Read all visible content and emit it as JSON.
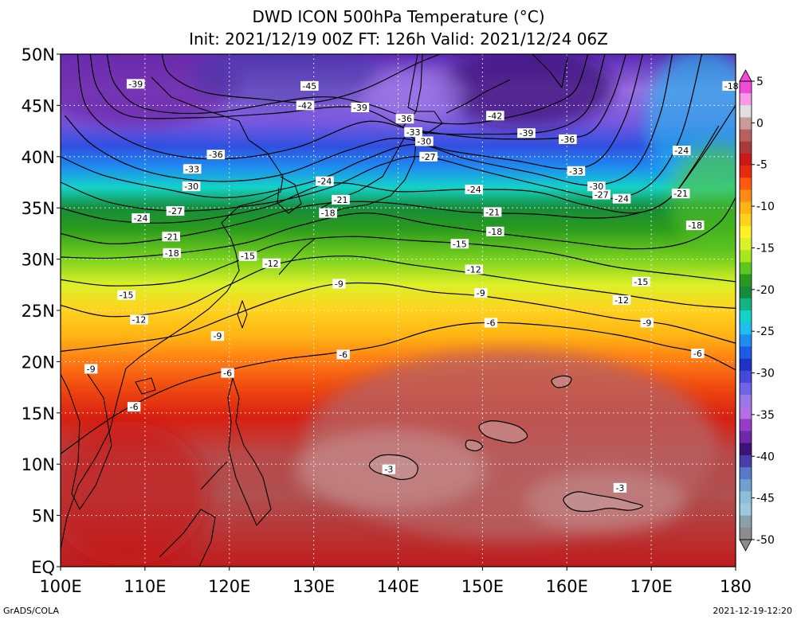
{
  "title": "DWD ICON 500hPa Temperature (°C)",
  "subtitle": "Init: 2021/12/19 00Z  FT: 126h  Valid: 2021/12/24 06Z",
  "credit": "GrADS/COLA",
  "timestamp": "2021-12-19-12:20",
  "map": {
    "lon_range": [
      100,
      180
    ],
    "lat_range": [
      0,
      50
    ],
    "lon_ticks": [
      {
        "lon": 100,
        "label": "100E"
      },
      {
        "lon": 110,
        "label": "110E"
      },
      {
        "lon": 120,
        "label": "120E"
      },
      {
        "lon": 130,
        "label": "130E"
      },
      {
        "lon": 140,
        "label": "140E"
      },
      {
        "lon": 150,
        "label": "150E"
      },
      {
        "lon": 160,
        "label": "160E"
      },
      {
        "lon": 170,
        "label": "170E"
      },
      {
        "lon": 180,
        "label": "180"
      }
    ],
    "lat_ticks": [
      {
        "lat": 0,
        "label": "EQ"
      },
      {
        "lat": 5,
        "label": "5N"
      },
      {
        "lat": 10,
        "label": "10N"
      },
      {
        "lat": 15,
        "label": "15N"
      },
      {
        "lat": 20,
        "label": "20N"
      },
      {
        "lat": 25,
        "label": "25N"
      },
      {
        "lat": 30,
        "label": "30N"
      },
      {
        "lat": 35,
        "label": "35N"
      },
      {
        "lat": 40,
        "label": "40N"
      },
      {
        "lat": 45,
        "label": "45N"
      },
      {
        "lat": 50,
        "label": "50N"
      }
    ]
  },
  "colorbar": {
    "labels": [
      "5",
      "0",
      "-5",
      "-10",
      "-15",
      "-20",
      "-25",
      "-30",
      "-35",
      "-40",
      "-45",
      "-50"
    ],
    "colors": [
      "#f04ad8",
      "#f89ae6",
      "#e0e0e0",
      "#c89a9a",
      "#b86060",
      "#a83a3a",
      "#c81818",
      "#e62a0e",
      "#ff5a10",
      "#ff8c14",
      "#ffb414",
      "#ffd21e",
      "#fff028",
      "#dcf028",
      "#a8e61e",
      "#5ac81e",
      "#2a9a1e",
      "#168c3a",
      "#14b482",
      "#14d2c8",
      "#1ebeee",
      "#1e8cf0",
      "#1e5ae6",
      "#1e32c8",
      "#4648dc",
      "#7064e6",
      "#9a78e6",
      "#b46ee6",
      "#963cc8",
      "#6e28aa",
      "#3c1478",
      "#4a3caa",
      "#5a78c8",
      "#6ea0d2",
      "#8cbed7",
      "#9ccadc",
      "#8aa0a8",
      "#8c8c8c"
    ]
  },
  "contours": [
    {
      "value": -45,
      "points": [
        [
          112,
          50
        ],
        [
          113,
          48
        ],
        [
          117,
          46.3
        ],
        [
          124,
          45.6
        ],
        [
          130,
          45.3
        ],
        [
          136,
          46.6
        ],
        [
          142,
          49
        ],
        [
          145,
          50
        ]
      ],
      "labels": [
        {
          "lon": 129.5,
          "lat": 46.9,
          "text": "-45"
        }
      ]
    },
    {
      "value": -42,
      "points": [
        [
          105.5,
          50
        ],
        [
          106.5,
          47
        ],
        [
          110,
          44.7
        ],
        [
          118,
          44.3
        ],
        [
          130,
          45.8
        ],
        [
          136,
          45.2
        ],
        [
          142,
          43.6
        ],
        [
          148,
          43.2
        ],
        [
          154,
          44
        ],
        [
          158,
          45
        ],
        [
          161,
          46.5
        ],
        [
          162.5,
          50
        ]
      ],
      "labels": [
        {
          "lon": 129,
          "lat": 45.0,
          "text": "-42"
        },
        {
          "lon": 151.5,
          "lat": 44.0,
          "text": "-42"
        }
      ]
    },
    {
      "value": -39,
      "points": [
        [
          103.5,
          50
        ],
        [
          104.5,
          46.5
        ],
        [
          108,
          44
        ],
        [
          116,
          43.8
        ],
        [
          125,
          44.2
        ],
        [
          135,
          44.8
        ],
        [
          142,
          42.5
        ],
        [
          150,
          42.2
        ],
        [
          157,
          42.4
        ],
        [
          161,
          43.5
        ],
        [
          163,
          45.5
        ],
        [
          164.5,
          50
        ]
      ],
      "labels": [
        {
          "lon": 108.9,
          "lat": 47.1,
          "text": "-39"
        },
        {
          "lon": 135.5,
          "lat": 44.8,
          "text": "-39"
        },
        {
          "lon": 155.2,
          "lat": 42.3,
          "text": "-39"
        }
      ]
    },
    {
      "value": -36,
      "points": [
        [
          102,
          50
        ],
        [
          103,
          45
        ],
        [
          107,
          42
        ],
        [
          113,
          40.2
        ],
        [
          120,
          39.8
        ],
        [
          128,
          40.9
        ],
        [
          136,
          43.4
        ],
        [
          142,
          42.6
        ],
        [
          150,
          41.8
        ],
        [
          159,
          41.8
        ],
        [
          163,
          42.5
        ],
        [
          165.5,
          46
        ],
        [
          167,
          50
        ]
      ],
      "labels": [
        {
          "lon": 118.4,
          "lat": 40.2,
          "text": "-36"
        },
        {
          "lon": 140.8,
          "lat": 43.7,
          "text": "-36"
        },
        {
          "lon": 160.1,
          "lat": 41.7,
          "text": "-36"
        }
      ]
    },
    {
      "value": -33,
      "points": [
        [
          100.5,
          44
        ],
        [
          104,
          41
        ],
        [
          110,
          38.6
        ],
        [
          118,
          37.6
        ],
        [
          126,
          38.2
        ],
        [
          134,
          40.6
        ],
        [
          140,
          41.8
        ],
        [
          146,
          40.6
        ],
        [
          154,
          39.6
        ],
        [
          160,
          38.8
        ],
        [
          164,
          39.8
        ],
        [
          167,
          44
        ],
        [
          169,
          50
        ]
      ],
      "labels": [
        {
          "lon": 115.6,
          "lat": 38.8,
          "text": "-33"
        },
        {
          "lon": 141.8,
          "lat": 42.4,
          "text": "-33"
        },
        {
          "lon": 161.1,
          "lat": 38.6,
          "text": "-33"
        }
      ]
    },
    {
      "value": -30,
      "points": [
        [
          100,
          40
        ],
        [
          105,
          38.2
        ],
        [
          112,
          36.9
        ],
        [
          120,
          36
        ],
        [
          130,
          37.6
        ],
        [
          136,
          39.7
        ],
        [
          142,
          41.2
        ],
        [
          148,
          39.8
        ],
        [
          156,
          38.4
        ],
        [
          163,
          37.2
        ],
        [
          168,
          38.8
        ],
        [
          171,
          44
        ],
        [
          172.5,
          50
        ]
      ],
      "labels": [
        {
          "lon": 115.5,
          "lat": 37.1,
          "text": "-30"
        },
        {
          "lon": 143.1,
          "lat": 41.5,
          "text": "-30"
        },
        {
          "lon": 163.5,
          "lat": 37.1,
          "text": "-30"
        }
      ]
    },
    {
      "value": -27,
      "points": [
        [
          100,
          37.5
        ],
        [
          106,
          35.5
        ],
        [
          114,
          34.7
        ],
        [
          124,
          35.4
        ],
        [
          132,
          37
        ],
        [
          138,
          39.2
        ],
        [
          143,
          40
        ],
        [
          150,
          38.6
        ],
        [
          158,
          37
        ],
        [
          165,
          35.9
        ],
        [
          170,
          37.4
        ],
        [
          173.5,
          42
        ],
        [
          176,
          50
        ]
      ],
      "labels": [
        {
          "lon": 113.6,
          "lat": 34.7,
          "text": "-27"
        },
        {
          "lon": 143.6,
          "lat": 40.0,
          "text": "-27"
        },
        {
          "lon": 164.1,
          "lat": 36.3,
          "text": "-27"
        }
      ]
    },
    {
      "value": -24,
      "points": [
        [
          100,
          35
        ],
        [
          106,
          33.8
        ],
        [
          114,
          33.6
        ],
        [
          124,
          35
        ],
        [
          132,
          37.4
        ],
        [
          140,
          36.6
        ],
        [
          148,
          36.8
        ],
        [
          156,
          36.6
        ],
        [
          162,
          35.3
        ],
        [
          168,
          34.5
        ],
        [
          172,
          35.8
        ],
        [
          175,
          39
        ],
        [
          178,
          43
        ]
      ],
      "labels": [
        {
          "lon": 109.5,
          "lat": 34.0,
          "text": "-24"
        },
        {
          "lon": 131.3,
          "lat": 37.6,
          "text": "-24"
        },
        {
          "lon": 149.0,
          "lat": 36.8,
          "text": "-24"
        },
        {
          "lon": 166.5,
          "lat": 35.9,
          "text": "-24"
        },
        {
          "lon": 173.6,
          "lat": 40.6,
          "text": "-24"
        }
      ]
    },
    {
      "value": -21,
      "points": [
        [
          100,
          32.5
        ],
        [
          106,
          31.5
        ],
        [
          114,
          32.2
        ],
        [
          122,
          33.6
        ],
        [
          128,
          35
        ],
        [
          134,
          35.6
        ],
        [
          140,
          35.4
        ],
        [
          148,
          34.6
        ],
        [
          156,
          34.4
        ],
        [
          163,
          34
        ],
        [
          168,
          34.4
        ],
        [
          172,
          35.8
        ],
        [
          176,
          40
        ],
        [
          180,
          45
        ]
      ],
      "labels": [
        {
          "lon": 113.1,
          "lat": 32.2,
          "text": "-21"
        },
        {
          "lon": 133.2,
          "lat": 35.8,
          "text": "-21"
        },
        {
          "lon": 151.2,
          "lat": 34.6,
          "text": "-21"
        },
        {
          "lon": 173.5,
          "lat": 36.4,
          "text": "-21"
        }
      ]
    },
    {
      "value": -18,
      "points": [
        [
          100,
          30.2
        ],
        [
          106,
          30.1
        ],
        [
          114,
          30.6
        ],
        [
          122,
          31.6
        ],
        [
          128,
          33.2
        ],
        [
          136,
          34.5
        ],
        [
          144,
          33.4
        ],
        [
          152,
          32.5
        ],
        [
          160,
          31.7
        ],
        [
          168,
          31
        ],
        [
          174,
          31.6
        ],
        [
          178,
          33.5
        ],
        [
          180,
          36
        ]
      ],
      "labels": [
        {
          "lon": 113.2,
          "lat": 30.6,
          "text": "-18"
        },
        {
          "lon": 131.7,
          "lat": 34.5,
          "text": "-18"
        },
        {
          "lon": 151.5,
          "lat": 32.7,
          "text": "-18"
        },
        {
          "lon": 175.2,
          "lat": 33.3,
          "text": "-18"
        },
        {
          "lon": 179.5,
          "lat": 46.9,
          "text": "-18"
        }
      ]
    },
    {
      "value": -15,
      "points": [
        [
          100,
          28
        ],
        [
          106,
          27.4
        ],
        [
          114,
          27.8
        ],
        [
          120,
          29.5
        ],
        [
          126,
          31.5
        ],
        [
          134,
          32.2
        ],
        [
          142,
          31.8
        ],
        [
          150,
          31.4
        ],
        [
          158,
          30.6
        ],
        [
          166,
          29.2
        ],
        [
          174,
          28.4
        ],
        [
          180,
          27.8
        ]
      ],
      "labels": [
        {
          "lon": 107.8,
          "lat": 26.5,
          "text": "-15"
        },
        {
          "lon": 122.2,
          "lat": 30.3,
          "text": "-15"
        },
        {
          "lon": 147.3,
          "lat": 31.5,
          "text": "-15"
        },
        {
          "lon": 168.8,
          "lat": 27.8,
          "text": "-15"
        }
      ]
    },
    {
      "value": -12,
      "points": [
        [
          100,
          25.5
        ],
        [
          106,
          24.4
        ],
        [
          114,
          25.2
        ],
        [
          120,
          27.5
        ],
        [
          126,
          29.6
        ],
        [
          134,
          30.3
        ],
        [
          142,
          29.4
        ],
        [
          150,
          28.5
        ],
        [
          158,
          27.5
        ],
        [
          166,
          26.6
        ],
        [
          174,
          25.6
        ],
        [
          180,
          25.2
        ]
      ],
      "labels": [
        {
          "lon": 109.3,
          "lat": 24.1,
          "text": "-12"
        },
        {
          "lon": 125.0,
          "lat": 29.6,
          "text": "-12"
        },
        {
          "lon": 149.0,
          "lat": 29.0,
          "text": "-12"
        },
        {
          "lon": 166.5,
          "lat": 26.0,
          "text": "-12"
        }
      ]
    },
    {
      "value": -9,
      "points": [
        [
          100,
          21
        ],
        [
          106,
          21.6
        ],
        [
          114,
          22.6
        ],
        [
          120,
          24.4
        ],
        [
          126,
          26.2
        ],
        [
          132,
          27.5
        ],
        [
          138,
          27.6
        ],
        [
          144,
          26.8
        ],
        [
          150,
          26.4
        ],
        [
          158,
          25.4
        ],
        [
          166,
          24.2
        ],
        [
          172,
          23.6
        ],
        [
          180,
          21.8
        ]
      ],
      "labels": [
        {
          "lon": 103.6,
          "lat": 19.3,
          "text": "-9"
        },
        {
          "lon": 118.6,
          "lat": 22.5,
          "text": "-9"
        },
        {
          "lon": 133.0,
          "lat": 27.6,
          "text": "-9"
        },
        {
          "lon": 149.8,
          "lat": 26.7,
          "text": "-9"
        },
        {
          "lon": 169.5,
          "lat": 23.8,
          "text": "-9"
        }
      ]
    },
    {
      "value": -6,
      "points": [
        [
          100,
          11
        ],
        [
          104,
          13.4
        ],
        [
          108,
          15.5
        ],
        [
          114,
          17.8
        ],
        [
          120,
          19.2
        ],
        [
          126,
          20.2
        ],
        [
          132,
          20.8
        ],
        [
          138,
          21.6
        ],
        [
          144,
          23.1
        ],
        [
          150,
          23.8
        ],
        [
          158,
          23.5
        ],
        [
          166,
          22.6
        ],
        [
          172,
          21.5
        ],
        [
          176,
          20.8
        ],
        [
          180,
          19.2
        ]
      ],
      "labels": [
        {
          "lon": 108.7,
          "lat": 15.6,
          "text": "-6"
        },
        {
          "lon": 119.8,
          "lat": 18.9,
          "text": "-6"
        },
        {
          "lon": 133.5,
          "lat": 20.7,
          "text": "-6"
        },
        {
          "lon": 151.0,
          "lat": 23.8,
          "text": "-6"
        },
        {
          "lon": 175.5,
          "lat": 20.8,
          "text": "-6"
        }
      ]
    }
  ],
  "warm_cells": [
    {
      "value": -3,
      "points": [
        [
          136.6,
          10
        ],
        [
          137.8,
          10.8
        ],
        [
          139.5,
          10.9
        ],
        [
          141.2,
          10.6
        ],
        [
          142.3,
          9.8
        ],
        [
          141.9,
          8.8
        ],
        [
          140.3,
          8.5
        ],
        [
          138.7,
          8.9
        ],
        [
          137.2,
          9.3
        ]
      ],
      "labels": [
        {
          "lon": 138.9,
          "lat": 9.5,
          "text": "-3"
        }
      ]
    },
    {
      "value": -3,
      "points": [
        [
          159.6,
          6.6
        ],
        [
          161.2,
          7.3
        ],
        [
          163.4,
          7.0
        ],
        [
          165.6,
          6.7
        ],
        [
          167.5,
          6.3
        ],
        [
          169,
          5.9
        ],
        [
          167.4,
          5.5
        ],
        [
          165,
          5.7
        ],
        [
          162.6,
          5.4
        ],
        [
          160.6,
          5.6
        ]
      ],
      "labels": [
        {
          "lon": 166.3,
          "lat": 7.7,
          "text": "-3"
        }
      ]
    },
    {
      "value": -3,
      "points": [
        [
          149.6,
          13.7
        ],
        [
          150.8,
          14.2
        ],
        [
          152.5,
          14.1
        ],
        [
          154.4,
          13.6
        ],
        [
          155.3,
          12.7
        ],
        [
          153.9,
          12.1
        ],
        [
          152.1,
          12.3
        ],
        [
          150.3,
          12.8
        ]
      ],
      "labels": []
    },
    {
      "value": -3,
      "points": [
        [
          148.2,
          12.3
        ],
        [
          149.4,
          12.2
        ],
        [
          150,
          11.7
        ],
        [
          149.2,
          11.3
        ],
        [
          148.1,
          11.6
        ]
      ],
      "labels": []
    },
    {
      "value": -3,
      "points": [
        [
          158.2,
          18.2
        ],
        [
          159.4,
          18.6
        ],
        [
          160.5,
          18.4
        ],
        [
          160.1,
          17.7
        ],
        [
          158.8,
          17.5
        ]
      ],
      "labels": []
    }
  ]
}
